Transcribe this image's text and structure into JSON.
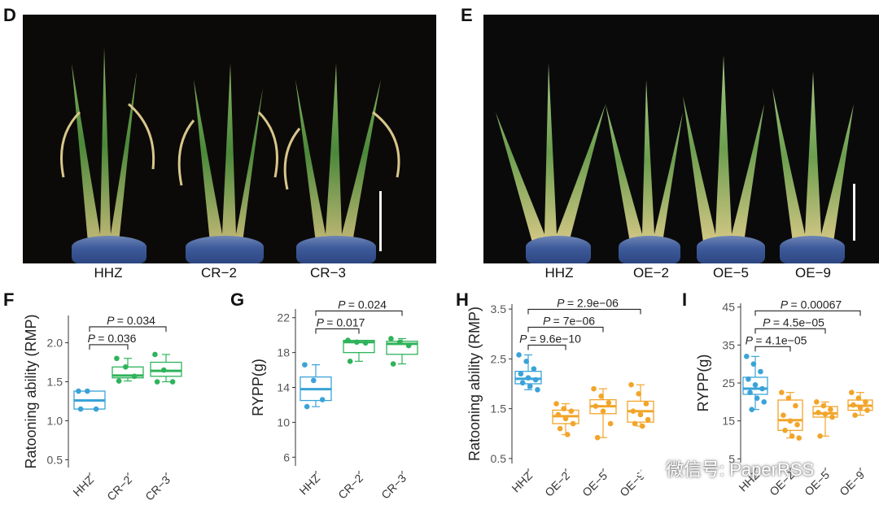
{
  "panels": {
    "D": {
      "letter": "D",
      "labels": [
        "HHZ",
        "CR−2",
        "CR−3"
      ]
    },
    "E": {
      "letter": "E",
      "labels": [
        "HHZ",
        "OE−2",
        "OE−5",
        "OE−9"
      ]
    }
  },
  "colors": {
    "hhz": "#3aa3d8",
    "cr": "#2fb35a",
    "oe": "#f2a52a"
  },
  "watermark": {
    "text": "微信号: PaperRSS",
    "icon": "wechat-icon"
  },
  "chart_data": [
    {
      "id": "F",
      "letter": "F",
      "type": "box",
      "ylabel": "Ratooning ability (RMP)",
      "ylim": [
        0.4,
        2.35
      ],
      "yticks": [
        0.5,
        1.0,
        1.5,
        2.0
      ],
      "ytick_labels": [
        "0.5",
        "1.0",
        "1.5",
        "2.0"
      ],
      "categories": [
        "HHZ",
        "CR−2",
        "CR−3"
      ],
      "groups": [
        {
          "name": "HHZ",
          "color": "#3aa3d8",
          "min": 1.15,
          "q1": 1.15,
          "median": 1.26,
          "q3": 1.38,
          "max": 1.38,
          "points": [
            1.38,
            1.38,
            1.15,
            1.15
          ]
        },
        {
          "name": "CR−2",
          "color": "#2fb35a",
          "min": 1.51,
          "q1": 1.55,
          "median": 1.58,
          "q3": 1.69,
          "max": 1.8,
          "points": [
            1.8,
            1.69,
            1.57,
            1.51
          ]
        },
        {
          "name": "CR−3",
          "color": "#2fb35a",
          "min": 1.5,
          "q1": 1.57,
          "median": 1.64,
          "q3": 1.75,
          "max": 1.85,
          "points": [
            1.85,
            1.65,
            1.5,
            1.5
          ]
        }
      ],
      "comparisons": [
        {
          "from": 0,
          "to": 1,
          "label": "= 0.036",
          "level": 0
        },
        {
          "from": 0,
          "to": 2,
          "label": "= 0.034",
          "level": 1
        }
      ]
    },
    {
      "id": "G",
      "letter": "G",
      "type": "box",
      "ylabel": "RYPP(g)",
      "ylim": [
        5,
        23
      ],
      "yticks": [
        6,
        10,
        14,
        18,
        22
      ],
      "ytick_labels": [
        "6",
        "10",
        "14",
        "18",
        "22"
      ],
      "categories": [
        "HHZ",
        "CR−2",
        "CR−3"
      ],
      "groups": [
        {
          "name": "HHZ",
          "color": "#3aa3d8",
          "min": 11.8,
          "q1": 12.5,
          "median": 13.8,
          "q3": 15.2,
          "max": 16.6,
          "points": [
            16.6,
            14.8,
            12.6,
            11.8
          ]
        },
        {
          "name": "CR−2",
          "color": "#2fb35a",
          "min": 17.0,
          "q1": 18.0,
          "median": 19.2,
          "q3": 19.4,
          "max": 19.4,
          "points": [
            19.4,
            19.2,
            19.1,
            17.0
          ]
        },
        {
          "name": "CR−3",
          "color": "#2fb35a",
          "min": 16.7,
          "q1": 17.8,
          "median": 19.0,
          "q3": 19.3,
          "max": 19.6,
          "points": [
            19.6,
            19.2,
            18.8,
            16.7
          ]
        }
      ],
      "comparisons": [
        {
          "from": 0,
          "to": 1,
          "label": "= 0.017",
          "level": 0
        },
        {
          "from": 0,
          "to": 2,
          "label": "= 0.024",
          "level": 1
        }
      ]
    },
    {
      "id": "H",
      "letter": "H",
      "type": "box",
      "ylabel": "Ratooning ability (RMP)",
      "ylim": [
        0.4,
        3.6
      ],
      "yticks": [
        0.5,
        1.5,
        2.5,
        3.5
      ],
      "ytick_labels": [
        "0.5",
        "1.5",
        "2.5",
        "3.5"
      ],
      "categories": [
        "HHZ",
        "OE−2",
        "OE−5",
        "OE−9"
      ],
      "groups": [
        {
          "name": "HHZ",
          "color": "#3aa3d8",
          "min": 1.88,
          "q1": 2.0,
          "median": 2.1,
          "q3": 2.25,
          "max": 2.58,
          "points": [
            2.58,
            2.45,
            2.3,
            2.2,
            2.12,
            2.08,
            2.02,
            1.95,
            1.88
          ]
        },
        {
          "name": "OE−2",
          "color": "#f2a52a",
          "min": 0.98,
          "q1": 1.2,
          "median": 1.35,
          "q3": 1.47,
          "max": 1.6,
          "points": [
            1.6,
            1.5,
            1.45,
            1.38,
            1.3,
            1.2,
            1.1,
            0.98
          ]
        },
        {
          "name": "OE−5",
          "color": "#f2a52a",
          "min": 0.92,
          "q1": 1.4,
          "median": 1.55,
          "q3": 1.68,
          "max": 1.9,
          "points": [
            1.9,
            1.75,
            1.62,
            1.55,
            1.45,
            1.2,
            0.92
          ]
        },
        {
          "name": "OE−9",
          "color": "#f2a52a",
          "min": 1.15,
          "q1": 1.23,
          "median": 1.45,
          "q3": 1.65,
          "max": 1.98,
          "points": [
            1.98,
            1.8,
            1.6,
            1.45,
            1.38,
            1.28,
            1.2,
            1.15
          ]
        }
      ],
      "comparisons": [
        {
          "from": 0,
          "to": 1,
          "label": "= 9.6e−10",
          "level": 0
        },
        {
          "from": 0,
          "to": 2,
          "label": "= 7e−06",
          "level": 1
        },
        {
          "from": 0,
          "to": 3,
          "label": "= 2.9e−06",
          "level": 2
        }
      ]
    },
    {
      "id": "I",
      "letter": "I",
      "type": "box",
      "ylabel": "RYPP(g)",
      "ylim": [
        4,
        46
      ],
      "yticks": [
        5,
        15,
        25,
        35,
        45
      ],
      "ytick_labels": [
        "5",
        "15",
        "25",
        "35",
        "45"
      ],
      "categories": [
        "HHZ",
        "OE−2",
        "OE−5",
        "OE−9"
      ],
      "groups": [
        {
          "name": "HHZ",
          "color": "#3aa3d8",
          "min": 18.0,
          "q1": 22.0,
          "median": 23.5,
          "q3": 26.5,
          "max": 32.0,
          "points": [
            32.0,
            30.0,
            28.0,
            26.0,
            24.5,
            23.5,
            22.5,
            21.0,
            20.0,
            18.0
          ]
        },
        {
          "name": "OE−2",
          "color": "#f2a52a",
          "min": 10.5,
          "q1": 12.5,
          "median": 15.2,
          "q3": 20.5,
          "max": 22.5,
          "points": [
            22.5,
            21.0,
            19.0,
            16.5,
            15.0,
            14.0,
            12.5,
            11.0,
            10.5
          ]
        },
        {
          "name": "OE−5",
          "color": "#f2a52a",
          "min": 11.0,
          "q1": 16.0,
          "median": 17.0,
          "q3": 18.8,
          "max": 20.0,
          "points": [
            20.0,
            19.0,
            18.0,
            17.2,
            16.8,
            16.0,
            11.0
          ]
        },
        {
          "name": "OE−9",
          "color": "#f2a52a",
          "min": 16.5,
          "q1": 17.8,
          "median": 19.0,
          "q3": 20.5,
          "max": 22.5,
          "points": [
            22.5,
            21.0,
            20.0,
            19.2,
            18.5,
            17.8,
            16.5
          ]
        }
      ],
      "comparisons": [
        {
          "from": 0,
          "to": 1,
          "label": "= 4.1e−05",
          "level": 0
        },
        {
          "from": 0,
          "to": 2,
          "label": "= 4.5e−05",
          "level": 1
        },
        {
          "from": 0,
          "to": 3,
          "label": "= 0.00067",
          "level": 2
        }
      ]
    }
  ]
}
